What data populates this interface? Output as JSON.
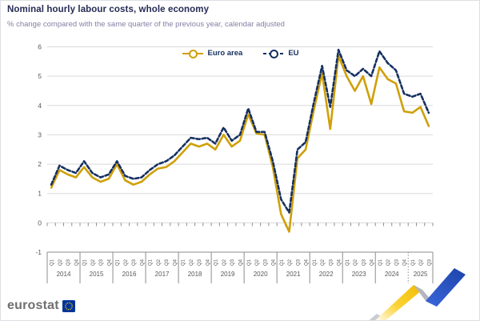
{
  "header": {
    "title": "Nominal hourly labour costs, whole economy",
    "subtitle": "% change compared with the same quarter of the previous year, calendar adjusted"
  },
  "footer": {
    "logo_text": "eurostat"
  },
  "colors": {
    "title": "#262b54",
    "subtitle": "#8481a5",
    "euro_area": "#cfa008",
    "eu": "#163061",
    "grid": "#d9d9d9",
    "axis": "#8c8c8c",
    "tick_text": "#595959",
    "logo_blue": "#003399",
    "star_yellow": "#ffcc00",
    "ribbon_yellow": "#f4c400",
    "ribbon_gray": "#b3b6bc",
    "ribbon_blue": "#2a56c6"
  },
  "chart_data": {
    "type": "line",
    "title": "Nominal hourly labour costs, whole economy",
    "ylabel": "",
    "xlabel": "",
    "ylim": [
      -1,
      6
    ],
    "yticks": [
      -1,
      0,
      1,
      2,
      3,
      4,
      5,
      6
    ],
    "grid": true,
    "legend_position": "top-center",
    "quarter_label_row": [
      "Q1",
      "Q2",
      "Q3",
      "Q4"
    ],
    "years": [
      {
        "label": "2014",
        "quarters": 4
      },
      {
        "label": "2015",
        "quarters": 4
      },
      {
        "label": "2016",
        "quarters": 4
      },
      {
        "label": "2017",
        "quarters": 4
      },
      {
        "label": "2018",
        "quarters": 4
      },
      {
        "label": "2019",
        "quarters": 4
      },
      {
        "label": "2020",
        "quarters": 4
      },
      {
        "label": "2021",
        "quarters": 4
      },
      {
        "label": "2022",
        "quarters": 4
      },
      {
        "label": "2023",
        "quarters": 4
      },
      {
        "label": "2024",
        "quarters": 4
      },
      {
        "label": "2025",
        "quarters": 3
      }
    ],
    "dashed_separator_before": "2025",
    "categories": [
      "2014Q1",
      "2014Q2",
      "2014Q3",
      "2014Q4",
      "2015Q1",
      "2015Q2",
      "2015Q3",
      "2015Q4",
      "2016Q1",
      "2016Q2",
      "2016Q3",
      "2016Q4",
      "2017Q1",
      "2017Q2",
      "2017Q3",
      "2017Q4",
      "2018Q1",
      "2018Q2",
      "2018Q3",
      "2018Q4",
      "2019Q1",
      "2019Q2",
      "2019Q3",
      "2019Q4",
      "2020Q1",
      "2020Q2",
      "2020Q3",
      "2020Q4",
      "2021Q1",
      "2021Q2",
      "2021Q3",
      "2021Q4",
      "2022Q1",
      "2022Q2",
      "2022Q3",
      "2022Q4",
      "2023Q1",
      "2023Q2",
      "2023Q3",
      "2023Q4",
      "2024Q1",
      "2024Q2",
      "2024Q3",
      "2024Q4",
      "2025Q1",
      "2025Q2",
      "2025Q3"
    ],
    "series": [
      {
        "name": "Euro area",
        "color": "#cfa008",
        "dash": "solid",
        "values": [
          1.2,
          1.8,
          1.65,
          1.55,
          1.9,
          1.55,
          1.4,
          1.5,
          2.0,
          1.45,
          1.3,
          1.4,
          1.65,
          1.85,
          1.9,
          2.1,
          2.4,
          2.7,
          2.6,
          2.7,
          2.5,
          3.0,
          2.6,
          2.8,
          3.7,
          3.05,
          3.0,
          1.9,
          0.3,
          -0.3,
          2.2,
          2.5,
          3.85,
          5.1,
          3.2,
          5.7,
          5.0,
          4.5,
          5.0,
          4.05,
          5.3,
          4.9,
          4.75,
          3.8,
          3.75,
          3.95,
          3.3
        ]
      },
      {
        "name": "EU",
        "color": "#163061",
        "dash": "dashed",
        "values": [
          1.3,
          1.95,
          1.8,
          1.7,
          2.1,
          1.7,
          1.55,
          1.65,
          2.1,
          1.6,
          1.5,
          1.55,
          1.8,
          2.0,
          2.1,
          2.3,
          2.6,
          2.9,
          2.85,
          2.9,
          2.7,
          3.25,
          2.8,
          3.0,
          3.9,
          3.1,
          3.1,
          2.1,
          0.8,
          0.35,
          2.5,
          2.75,
          4.1,
          5.35,
          3.95,
          5.9,
          5.2,
          5.0,
          5.25,
          5.0,
          5.85,
          5.45,
          5.2,
          4.4,
          4.3,
          4.4,
          3.75
        ]
      }
    ]
  }
}
